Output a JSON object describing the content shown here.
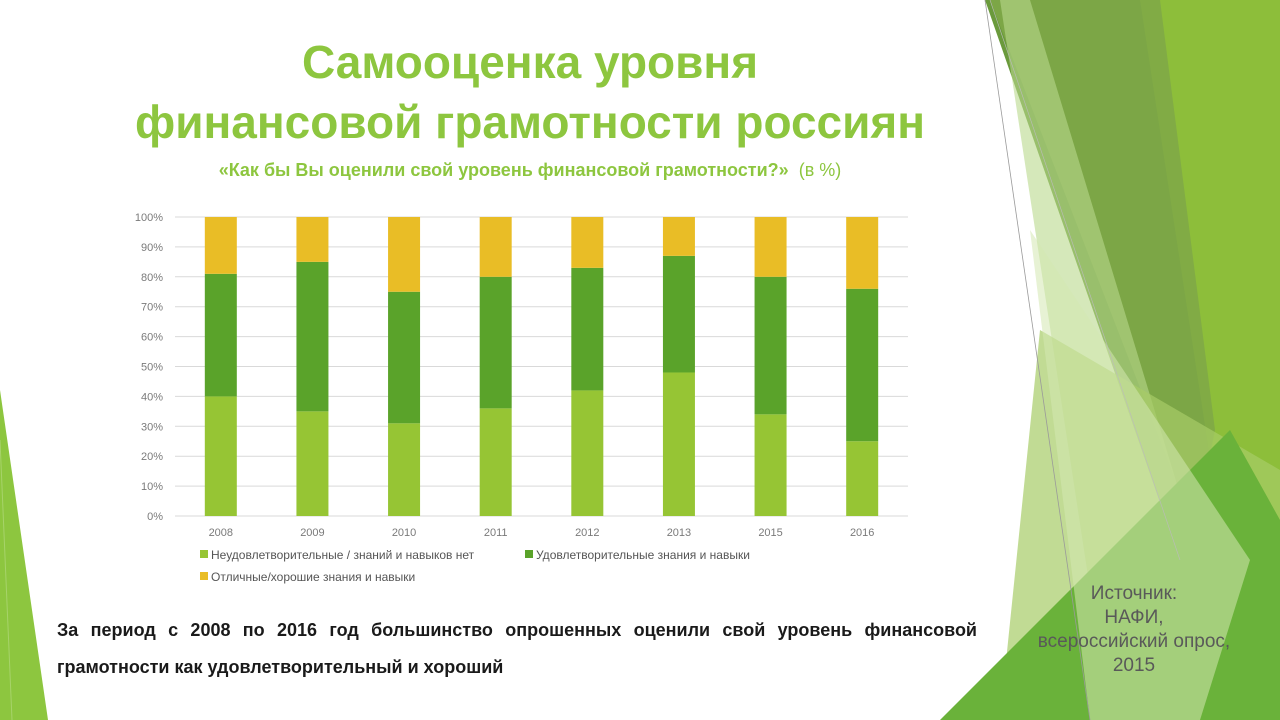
{
  "slide": {
    "title_line1": "Самооценка уровня",
    "title_line2": "финансовой грамотности россиян",
    "subtitle": "«Как бы Вы оценили свой уровень финансовой грамотности?»",
    "subtitle_unit": "(в %)",
    "note": "За период с 2008 по 2016 год большинство опрошенных оценили свой уровень финансовой грамотности как удовлетворительный и хороший",
    "source": [
      "Источник:",
      "НАФИ,",
      "всероссийский опрос,",
      "2015"
    ]
  },
  "colors": {
    "title": "#8dc63f",
    "series_low": "#96c534",
    "series_mid": "#5aa32a",
    "series_high": "#e9bd26",
    "grid": "#d9d9d9"
  },
  "chart_data": {
    "type": "bar",
    "stacked": true,
    "categories": [
      "2008",
      "2009",
      "2010",
      "2011",
      "2012",
      "2013",
      "2015",
      "2016"
    ],
    "series": [
      {
        "name": "Неудовлетворительные / знаний и навыков нет",
        "values": [
          40,
          35,
          31,
          36,
          42,
          48,
          34,
          25
        ]
      },
      {
        "name": "Удовлетворительные знания и навыки",
        "values": [
          41,
          50,
          44,
          44,
          41,
          39,
          46,
          51
        ]
      },
      {
        "name": "Отличные/хорошие знания и навыки",
        "values": [
          19,
          15,
          25,
          20,
          17,
          13,
          20,
          24
        ]
      }
    ],
    "y_ticks": [
      "0%",
      "10%",
      "20%",
      "30%",
      "40%",
      "50%",
      "60%",
      "70%",
      "80%",
      "90%",
      "100%"
    ],
    "ylim": [
      0,
      100
    ],
    "grid": true,
    "legend_position": "bottom"
  }
}
